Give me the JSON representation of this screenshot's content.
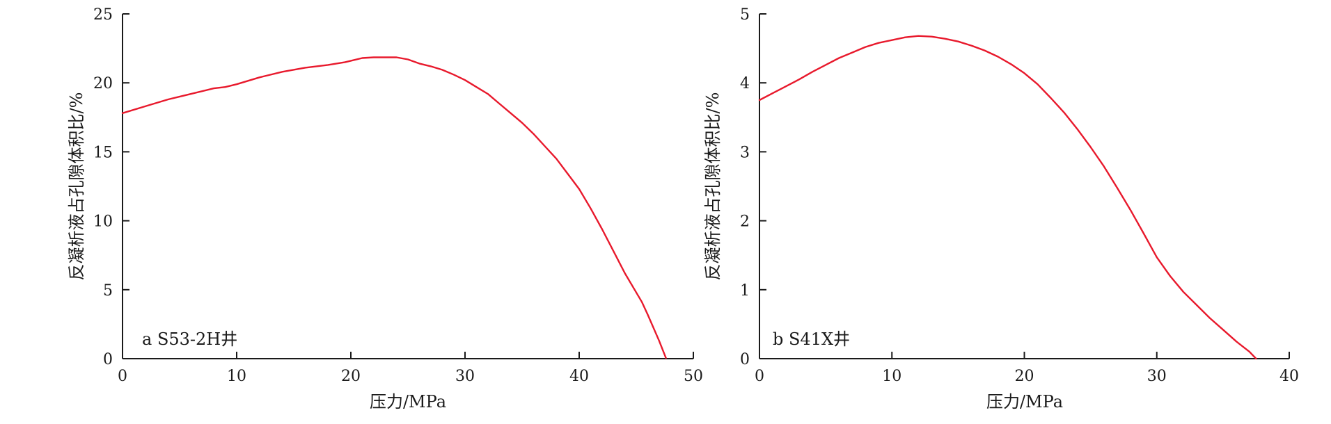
{
  "chart_data": [
    {
      "type": "line",
      "title": "",
      "panel_label": "a S53-2H井",
      "xlabel": "压力/MPa",
      "ylabel": "反凝析液占孔隙体积比/%",
      "xlim": [
        0,
        50
      ],
      "ylim": [
        0,
        25
      ],
      "xticks": [
        0,
        10,
        20,
        30,
        40,
        50
      ],
      "yticks": [
        0,
        5,
        10,
        15,
        20,
        25
      ],
      "grid": false,
      "line_color": "#e8192c",
      "series": [
        {
          "x": [
            0,
            2,
            4,
            6,
            8,
            9,
            10,
            12,
            14,
            16,
            18,
            19.5,
            21,
            22,
            23,
            24,
            25,
            26,
            27,
            28,
            29,
            30,
            31,
            32,
            33,
            34,
            35,
            36,
            37,
            38,
            39,
            40,
            41,
            42,
            43,
            44,
            45,
            45.5,
            46,
            47,
            47.6
          ],
          "y": [
            17.8,
            18.3,
            18.8,
            19.2,
            19.6,
            19.7,
            19.9,
            20.4,
            20.8,
            21.1,
            21.3,
            21.5,
            21.8,
            21.85,
            21.85,
            21.85,
            21.7,
            21.4,
            21.2,
            20.95,
            20.6,
            20.2,
            19.7,
            19.2,
            18.5,
            17.8,
            17.1,
            16.3,
            15.4,
            14.5,
            13.4,
            12.3,
            10.9,
            9.4,
            7.8,
            6.2,
            4.8,
            4.1,
            3.2,
            1.3,
            0.05
          ]
        }
      ]
    },
    {
      "type": "line",
      "title": "",
      "panel_label": "b S41X井",
      "xlabel": "压力/MPa",
      "ylabel": "反凝析液占孔隙体积比/%",
      "xlim": [
        0,
        40
      ],
      "ylim": [
        0,
        5
      ],
      "xticks": [
        0,
        10,
        20,
        30,
        40
      ],
      "yticks": [
        0,
        1,
        2,
        3,
        4,
        5
      ],
      "grid": false,
      "line_color": "#e8192c",
      "series": [
        {
          "x": [
            0,
            1,
            2,
            3,
            4,
            5,
            6,
            7,
            8,
            9,
            10,
            11,
            12,
            13,
            14,
            15,
            16,
            17,
            18,
            19,
            20,
            21,
            22,
            23,
            24,
            25,
            26,
            27,
            28,
            29,
            30,
            31,
            32,
            33,
            34,
            35,
            36,
            37,
            37.5
          ],
          "y": [
            3.75,
            3.85,
            3.95,
            4.05,
            4.16,
            4.26,
            4.36,
            4.44,
            4.52,
            4.58,
            4.62,
            4.66,
            4.68,
            4.67,
            4.64,
            4.6,
            4.54,
            4.47,
            4.38,
            4.27,
            4.14,
            3.98,
            3.78,
            3.57,
            3.33,
            3.07,
            2.79,
            2.48,
            2.16,
            1.82,
            1.47,
            1.2,
            0.97,
            0.78,
            0.59,
            0.42,
            0.25,
            0.1,
            0.0
          ]
        }
      ]
    }
  ]
}
